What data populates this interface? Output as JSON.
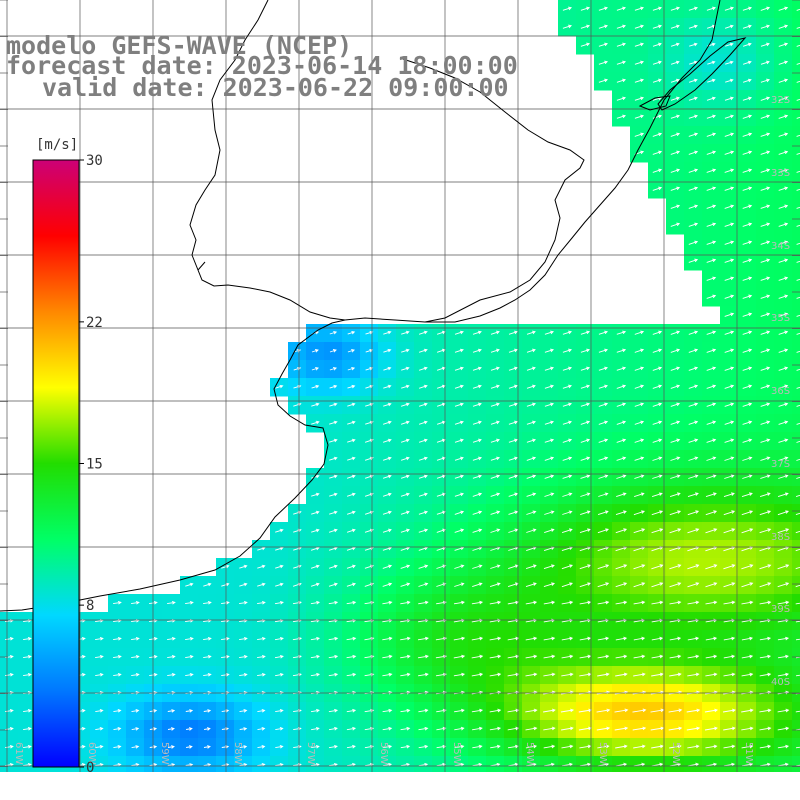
{
  "titles": {
    "model": "modelo GEFS-WAVE (NCEP)",
    "forecast": "forecast date: 2023-06-14 18:00:00",
    "valid": "valid date: 2023-06-22 09:00:00"
  },
  "colorbar": {
    "unit": "[m/s]",
    "ticks": [
      "30",
      "22",
      "15",
      "8",
      "0"
    ],
    "tick_values": [
      30,
      22,
      15,
      8,
      0
    ],
    "range": [
      0,
      30
    ],
    "stops": [
      "#0000ff",
      "#0077ff",
      "#00d8ff",
      "#00ff66",
      "#22dd00",
      "#ffff00",
      "#ff8800",
      "#ff0000",
      "#cc0077"
    ]
  },
  "lat_labels": [
    "32S",
    "33S",
    "34S",
    "35S",
    "36S",
    "37S",
    "38S",
    "39S",
    "40S"
  ],
  "lon_labels": [
    "61W",
    "60W",
    "59W",
    "58W",
    "57W",
    "56W",
    "55W",
    "54W",
    "53W",
    "52W",
    "51W"
  ],
  "colors": {
    "land": "#ffffff",
    "coast": "#000000",
    "grid": "#555555",
    "arrow": "#ffffff",
    "title": "#7f7f7f"
  },
  "chart_data": {
    "type": "heatmap",
    "variable": "wind speed with direction arrows",
    "unit": "m/s",
    "color_range": [
      0,
      30
    ],
    "lat_range": [
      "31S",
      "41S"
    ],
    "lon_range": [
      "61W",
      "51W"
    ],
    "approx_max_speed": 21,
    "prevailing_direction": "toward northeast",
    "regions": [
      {
        "area": "Rio de la Plata estuary",
        "speed": 4
      },
      {
        "area": "near Uruguay coast",
        "speed": 7
      },
      {
        "area": "offshore 35S-37S",
        "speed": 10
      },
      {
        "area": "38S-39S 54W-51W",
        "speed": 15
      },
      {
        "area": "39.5S-40.5S 55W-52W",
        "speed": 20
      }
    ]
  }
}
